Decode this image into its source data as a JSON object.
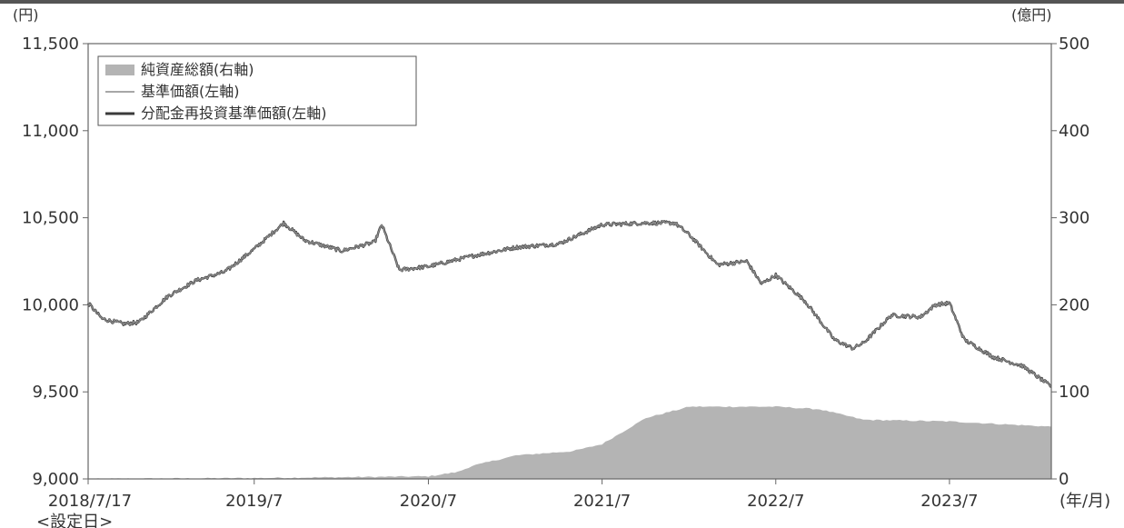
{
  "chart_data": {
    "type": "area+line",
    "left_unit": "(円)",
    "right_unit": "(億円)",
    "x_unit": "(年/月)",
    "start_note": "<設定日>",
    "y_left": {
      "min": 9000,
      "max": 11500,
      "ticks": [
        9000,
        9500,
        10000,
        10500,
        11000,
        11500
      ],
      "tick_labels": [
        "9,000",
        "9,500",
        "10,000",
        "10,500",
        "11,000",
        "11,500"
      ]
    },
    "y_right": {
      "min": 0,
      "max": 500,
      "ticks": [
        0,
        100,
        200,
        300,
        400,
        500
      ],
      "tick_labels": [
        "0",
        "100",
        "200",
        "300",
        "400",
        "500"
      ]
    },
    "x_axis": {
      "start": "2018-07-17",
      "end": "2024-01-31",
      "ticks": [
        "2018-07-17",
        "2019-07-01",
        "2020-07-01",
        "2021-07-01",
        "2022-07-01",
        "2023-07-01"
      ],
      "tick_labels": [
        "2018/7/17",
        "2019/7",
        "2020/7",
        "2021/7",
        "2022/7",
        "2023/7"
      ]
    },
    "legend": {
      "position": "top-left",
      "entries": [
        {
          "label": "純資産総額(右軸)",
          "style": "area",
          "color": "#b4b4b4"
        },
        {
          "label": "基準価額(左軸)",
          "style": "thin-line",
          "color": "#8a8a8a"
        },
        {
          "label": "分配金再投資基準価額(左軸)",
          "style": "thick-line",
          "color": "#3a3a3a"
        }
      ]
    },
    "series": [
      {
        "name": "純資産総額(右軸)",
        "axis": "right",
        "x": [
          "2018-07-17",
          "2019-01-01",
          "2019-07-01",
          "2020-01-01",
          "2020-07-01",
          "2020-09-01",
          "2020-10-01",
          "2021-01-01",
          "2021-05-01",
          "2021-07-01",
          "2021-10-01",
          "2022-01-01",
          "2022-07-01",
          "2022-10-01",
          "2023-01-01",
          "2023-07-01",
          "2024-01-31"
        ],
        "values": [
          0,
          0.5,
          1,
          2,
          3,
          8,
          15,
          27,
          32,
          40,
          70,
          83,
          83,
          80,
          68,
          66,
          60
        ]
      },
      {
        "name": "基準価額(左軸)",
        "axis": "left",
        "x": [
          "2018-07-17",
          "2018-08-15",
          "2018-10-01",
          "2018-11-01",
          "2019-01-01",
          "2019-03-01",
          "2019-05-01",
          "2019-07-01",
          "2019-09-01",
          "2019-10-15",
          "2020-01-01",
          "2020-03-10",
          "2020-03-25",
          "2020-05-01",
          "2020-07-01",
          "2020-10-01",
          "2021-01-01",
          "2021-04-01",
          "2021-07-01",
          "2021-10-01",
          "2021-12-01",
          "2022-01-01",
          "2022-03-01",
          "2022-05-01",
          "2022-06-01",
          "2022-07-01",
          "2022-09-01",
          "2022-11-01",
          "2022-12-10",
          "2023-01-01",
          "2023-03-01",
          "2023-05-01",
          "2023-06-01",
          "2023-07-01",
          "2023-08-01",
          "2023-10-01",
          "2023-12-01",
          "2024-01-31"
        ],
        "values": [
          10010,
          9920,
          9890,
          9900,
          10050,
          10140,
          10190,
          10320,
          10470,
          10370,
          10310,
          10360,
          10460,
          10200,
          10220,
          10280,
          10330,
          10350,
          10460,
          10470,
          10470,
          10400,
          10230,
          10250,
          10120,
          10170,
          10020,
          9800,
          9750,
          9780,
          9940,
          9930,
          10000,
          10010,
          9800,
          9700,
          9650,
          9530
        ]
      },
      {
        "name": "分配金再投資基準価額(左軸)",
        "axis": "left",
        "x": [
          "2018-07-17",
          "2018-08-15",
          "2018-10-01",
          "2018-11-01",
          "2019-01-01",
          "2019-03-01",
          "2019-05-01",
          "2019-07-01",
          "2019-09-01",
          "2019-10-15",
          "2020-01-01",
          "2020-03-10",
          "2020-03-25",
          "2020-05-01",
          "2020-07-01",
          "2020-10-01",
          "2021-01-01",
          "2021-04-01",
          "2021-07-01",
          "2021-10-01",
          "2021-12-01",
          "2022-01-01",
          "2022-03-01",
          "2022-05-01",
          "2022-06-01",
          "2022-07-01",
          "2022-09-01",
          "2022-11-01",
          "2022-12-10",
          "2023-01-01",
          "2023-03-01",
          "2023-05-01",
          "2023-06-01",
          "2023-07-01",
          "2023-08-01",
          "2023-10-01",
          "2023-12-01",
          "2024-01-31"
        ],
        "values": [
          10010,
          9920,
          9890,
          9900,
          10050,
          10140,
          10190,
          10320,
          10470,
          10370,
          10310,
          10360,
          10460,
          10200,
          10220,
          10280,
          10330,
          10350,
          10460,
          10470,
          10470,
          10400,
          10230,
          10250,
          10120,
          10170,
          10020,
          9800,
          9750,
          9780,
          9940,
          9930,
          10000,
          10010,
          9800,
          9700,
          9650,
          9530
        ]
      }
    ]
  }
}
